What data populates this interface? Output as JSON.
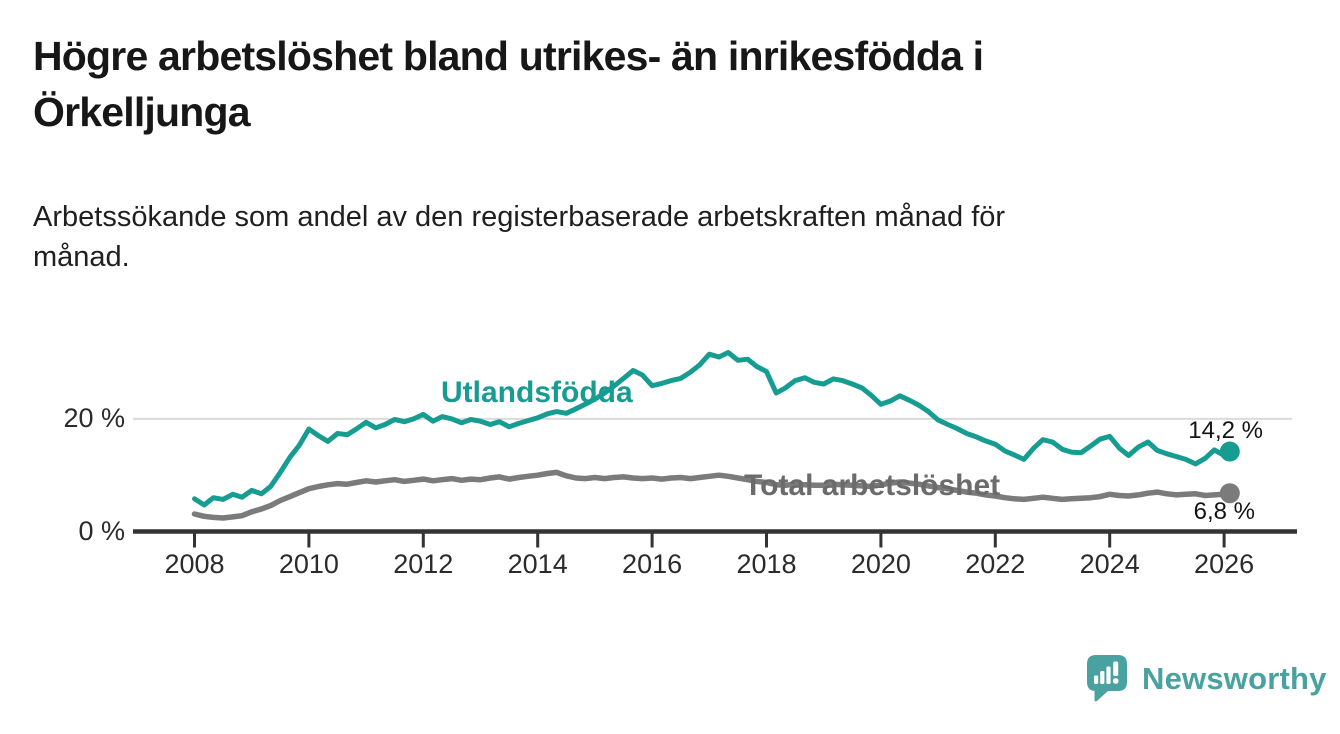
{
  "title_lines": [
    "Högre arbetslöshet bland utrikes- än inrikesfödda i",
    "Örkelljunga"
  ],
  "subtitle_lines": [
    "Arbetssökande som andel av den registerbaserade arbetskraften månad för",
    "månad."
  ],
  "branding": {
    "wordmark": "Newsworthy"
  },
  "colors": {
    "foreign_born_line": "#169C90",
    "total_line": "#7B7B7B",
    "total_label": "#6B6B6B",
    "axis": "#333333",
    "gridline": "#DBDBDB",
    "tick_text": "#2B2B2B",
    "title_text": "#171717",
    "brand_teal": "#4AA2A0"
  },
  "chart_data": {
    "type": "line",
    "title": "Högre arbetslöshet bland utrikes- än inrikesfödda i Örkelljunga",
    "subtitle": "Arbetssökande som andel av den registerbaserade arbetskraften månad för månad.",
    "unit": "%",
    "x_range": [
      2008,
      2026.1
    ],
    "ylim": [
      0,
      34
    ],
    "y_gridlines": [
      20
    ],
    "y_ticks": [
      {
        "value": 0,
        "label": "0 %"
      },
      {
        "value": 20,
        "label": "20 %"
      }
    ],
    "x_ticks": [
      2008,
      2010,
      2012,
      2014,
      2016,
      2018,
      2020,
      2022,
      2024,
      2026
    ],
    "legend_position": "inline-labels",
    "series": [
      {
        "name": "Utlandsfödda",
        "color": "#169C90",
        "end_label": "14,2 %",
        "end_value": 14.2,
        "points": [
          [
            2008.0,
            5.8
          ],
          [
            2008.17,
            4.7
          ],
          [
            2008.33,
            6.0
          ],
          [
            2008.5,
            5.7
          ],
          [
            2008.67,
            6.6
          ],
          [
            2008.83,
            6.1
          ],
          [
            2009.0,
            7.3
          ],
          [
            2009.17,
            6.7
          ],
          [
            2009.33,
            8.0
          ],
          [
            2009.5,
            10.5
          ],
          [
            2009.67,
            13.2
          ],
          [
            2009.83,
            15.3
          ],
          [
            2010.0,
            18.2
          ],
          [
            2010.17,
            17.0
          ],
          [
            2010.33,
            16.0
          ],
          [
            2010.5,
            17.4
          ],
          [
            2010.67,
            17.2
          ],
          [
            2010.83,
            18.2
          ],
          [
            2011.0,
            19.4
          ],
          [
            2011.17,
            18.4
          ],
          [
            2011.33,
            19.0
          ],
          [
            2011.5,
            19.9
          ],
          [
            2011.67,
            19.5
          ],
          [
            2011.83,
            20.0
          ],
          [
            2012.0,
            20.8
          ],
          [
            2012.17,
            19.6
          ],
          [
            2012.33,
            20.4
          ],
          [
            2012.5,
            20.0
          ],
          [
            2012.67,
            19.3
          ],
          [
            2012.83,
            19.9
          ],
          [
            2013.0,
            19.6
          ],
          [
            2013.17,
            19.0
          ],
          [
            2013.33,
            19.5
          ],
          [
            2013.5,
            18.6
          ],
          [
            2013.67,
            19.2
          ],
          [
            2013.83,
            19.7
          ],
          [
            2014.0,
            20.2
          ],
          [
            2014.17,
            20.9
          ],
          [
            2014.33,
            21.3
          ],
          [
            2014.5,
            21.0
          ],
          [
            2014.67,
            21.8
          ],
          [
            2014.83,
            22.6
          ],
          [
            2015.0,
            23.5
          ],
          [
            2015.17,
            24.6
          ],
          [
            2015.33,
            25.8
          ],
          [
            2015.5,
            27.2
          ],
          [
            2015.67,
            28.6
          ],
          [
            2015.83,
            27.8
          ],
          [
            2016.0,
            25.9
          ],
          [
            2016.17,
            26.3
          ],
          [
            2016.33,
            26.8
          ],
          [
            2016.5,
            27.2
          ],
          [
            2016.67,
            28.3
          ],
          [
            2016.83,
            29.6
          ],
          [
            2017.0,
            31.5
          ],
          [
            2017.17,
            31.0
          ],
          [
            2017.33,
            31.8
          ],
          [
            2017.5,
            30.4
          ],
          [
            2017.67,
            30.6
          ],
          [
            2017.83,
            29.3
          ],
          [
            2018.0,
            28.4
          ],
          [
            2018.17,
            24.6
          ],
          [
            2018.33,
            25.5
          ],
          [
            2018.5,
            26.8
          ],
          [
            2018.67,
            27.3
          ],
          [
            2018.83,
            26.5
          ],
          [
            2019.0,
            26.2
          ],
          [
            2019.17,
            27.1
          ],
          [
            2019.33,
            26.8
          ],
          [
            2019.5,
            26.2
          ],
          [
            2019.67,
            25.5
          ],
          [
            2019.83,
            24.2
          ],
          [
            2020.0,
            22.6
          ],
          [
            2020.17,
            23.2
          ],
          [
            2020.33,
            24.1
          ],
          [
            2020.5,
            23.3
          ],
          [
            2020.67,
            22.4
          ],
          [
            2020.83,
            21.3
          ],
          [
            2021.0,
            19.8
          ],
          [
            2021.17,
            19.0
          ],
          [
            2021.33,
            18.3
          ],
          [
            2021.5,
            17.4
          ],
          [
            2021.67,
            16.8
          ],
          [
            2021.83,
            16.1
          ],
          [
            2022.0,
            15.5
          ],
          [
            2022.17,
            14.3
          ],
          [
            2022.33,
            13.6
          ],
          [
            2022.5,
            12.8
          ],
          [
            2022.67,
            14.8
          ],
          [
            2022.83,
            16.3
          ],
          [
            2023.0,
            15.9
          ],
          [
            2023.17,
            14.6
          ],
          [
            2023.33,
            14.1
          ],
          [
            2023.5,
            14.0
          ],
          [
            2023.67,
            15.2
          ],
          [
            2023.83,
            16.4
          ],
          [
            2024.0,
            16.9
          ],
          [
            2024.17,
            14.8
          ],
          [
            2024.33,
            13.5
          ],
          [
            2024.5,
            15.0
          ],
          [
            2024.67,
            15.9
          ],
          [
            2024.83,
            14.4
          ],
          [
            2025.0,
            13.8
          ],
          [
            2025.17,
            13.3
          ],
          [
            2025.33,
            12.8
          ],
          [
            2025.5,
            12.0
          ],
          [
            2025.67,
            13.0
          ],
          [
            2025.83,
            14.5
          ],
          [
            2026.0,
            13.5
          ],
          [
            2026.1,
            14.2
          ]
        ]
      },
      {
        "name": "Total arbetslöshet",
        "color": "#7B7B7B",
        "end_label": "6,8 %",
        "end_value": 6.8,
        "points": [
          [
            2008.0,
            3.1
          ],
          [
            2008.17,
            2.7
          ],
          [
            2008.33,
            2.5
          ],
          [
            2008.5,
            2.4
          ],
          [
            2008.67,
            2.6
          ],
          [
            2008.83,
            2.8
          ],
          [
            2009.0,
            3.5
          ],
          [
            2009.17,
            4.0
          ],
          [
            2009.33,
            4.6
          ],
          [
            2009.5,
            5.5
          ],
          [
            2009.67,
            6.2
          ],
          [
            2009.83,
            6.9
          ],
          [
            2010.0,
            7.6
          ],
          [
            2010.17,
            8.0
          ],
          [
            2010.33,
            8.3
          ],
          [
            2010.5,
            8.5
          ],
          [
            2010.67,
            8.4
          ],
          [
            2010.83,
            8.7
          ],
          [
            2011.0,
            9.0
          ],
          [
            2011.17,
            8.8
          ],
          [
            2011.33,
            9.0
          ],
          [
            2011.5,
            9.2
          ],
          [
            2011.67,
            8.9
          ],
          [
            2011.83,
            9.1
          ],
          [
            2012.0,
            9.3
          ],
          [
            2012.17,
            9.0
          ],
          [
            2012.33,
            9.2
          ],
          [
            2012.5,
            9.4
          ],
          [
            2012.67,
            9.1
          ],
          [
            2012.83,
            9.3
          ],
          [
            2013.0,
            9.2
          ],
          [
            2013.17,
            9.5
          ],
          [
            2013.33,
            9.7
          ],
          [
            2013.5,
            9.3
          ],
          [
            2013.67,
            9.6
          ],
          [
            2013.83,
            9.8
          ],
          [
            2014.0,
            10.0
          ],
          [
            2014.17,
            10.3
          ],
          [
            2014.33,
            10.5
          ],
          [
            2014.5,
            9.9
          ],
          [
            2014.67,
            9.5
          ],
          [
            2014.83,
            9.4
          ],
          [
            2015.0,
            9.6
          ],
          [
            2015.17,
            9.4
          ],
          [
            2015.33,
            9.6
          ],
          [
            2015.5,
            9.7
          ],
          [
            2015.67,
            9.5
          ],
          [
            2015.83,
            9.4
          ],
          [
            2016.0,
            9.5
          ],
          [
            2016.17,
            9.3
          ],
          [
            2016.33,
            9.5
          ],
          [
            2016.5,
            9.6
          ],
          [
            2016.67,
            9.4
          ],
          [
            2016.83,
            9.6
          ],
          [
            2017.0,
            9.8
          ],
          [
            2017.17,
            10.0
          ],
          [
            2017.33,
            9.8
          ],
          [
            2017.5,
            9.5
          ],
          [
            2017.67,
            9.2
          ],
          [
            2017.83,
            8.9
          ],
          [
            2018.0,
            8.7
          ],
          [
            2018.17,
            8.3
          ],
          [
            2018.33,
            8.2
          ],
          [
            2018.5,
            8.4
          ],
          [
            2018.67,
            8.3
          ],
          [
            2018.83,
            8.2
          ],
          [
            2019.0,
            8.2
          ],
          [
            2019.17,
            8.4
          ],
          [
            2019.33,
            8.3
          ],
          [
            2019.5,
            8.2
          ],
          [
            2019.67,
            8.1
          ],
          [
            2019.83,
            8.0
          ],
          [
            2020.0,
            8.3
          ],
          [
            2020.17,
            8.6
          ],
          [
            2020.33,
            8.8
          ],
          [
            2020.5,
            8.6
          ],
          [
            2020.67,
            8.4
          ],
          [
            2020.83,
            8.1
          ],
          [
            2021.0,
            7.8
          ],
          [
            2021.17,
            7.6
          ],
          [
            2021.33,
            7.3
          ],
          [
            2021.5,
            7.0
          ],
          [
            2021.67,
            6.8
          ],
          [
            2021.83,
            6.5
          ],
          [
            2022.0,
            6.3
          ],
          [
            2022.17,
            6.0
          ],
          [
            2022.33,
            5.8
          ],
          [
            2022.5,
            5.7
          ],
          [
            2022.67,
            5.9
          ],
          [
            2022.83,
            6.1
          ],
          [
            2023.0,
            5.9
          ],
          [
            2023.17,
            5.7
          ],
          [
            2023.33,
            5.8
          ],
          [
            2023.5,
            5.9
          ],
          [
            2023.67,
            6.0
          ],
          [
            2023.83,
            6.2
          ],
          [
            2024.0,
            6.6
          ],
          [
            2024.17,
            6.4
          ],
          [
            2024.33,
            6.3
          ],
          [
            2024.5,
            6.5
          ],
          [
            2024.67,
            6.8
          ],
          [
            2024.83,
            7.0
          ],
          [
            2025.0,
            6.7
          ],
          [
            2025.17,
            6.5
          ],
          [
            2025.33,
            6.6
          ],
          [
            2025.5,
            6.7
          ],
          [
            2025.67,
            6.4
          ],
          [
            2025.83,
            6.5
          ],
          [
            2026.0,
            6.6
          ],
          [
            2026.1,
            6.8
          ]
        ]
      }
    ]
  }
}
